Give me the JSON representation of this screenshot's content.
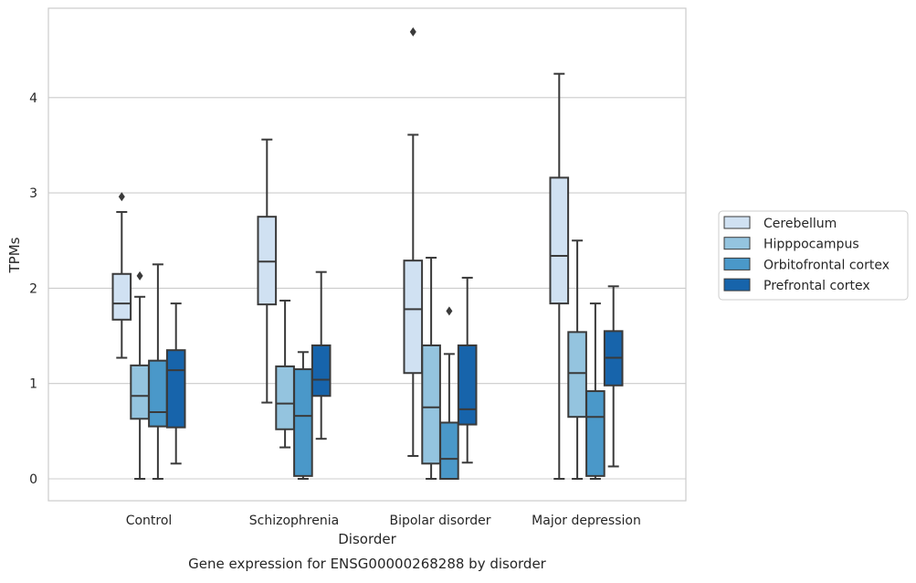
{
  "chart_data": {
    "type": "box",
    "title": "",
    "caption": "Gene expression for ENSG00000268288 by disorder",
    "xlabel": "Disorder",
    "ylabel": "TPMs",
    "ylim": [
      -0.22,
      4.95
    ],
    "yticks": [
      0,
      1,
      2,
      3,
      4
    ],
    "grid": "horizontal",
    "legend_position": "right",
    "categories": [
      "Control",
      "Schizophrenia",
      "Bipolar disorder",
      "Major depression"
    ],
    "series": [
      {
        "name": "Cerebellum",
        "color": "#d0e1f2",
        "boxes": [
          {
            "whisker_low": 1.27,
            "q1": 1.67,
            "median": 1.84,
            "q3": 2.15,
            "whisker_high": 2.8,
            "outliers": [
              2.96
            ]
          },
          {
            "whisker_low": 0.8,
            "q1": 1.83,
            "median": 2.28,
            "q3": 2.75,
            "whisker_high": 3.56,
            "outliers": []
          },
          {
            "whisker_low": 0.24,
            "q1": 1.11,
            "median": 1.78,
            "q3": 2.29,
            "whisker_high": 3.61,
            "outliers": [
              4.69
            ]
          },
          {
            "whisker_low": 0.0,
            "q1": 1.84,
            "median": 2.34,
            "q3": 3.16,
            "whisker_high": 4.25,
            "outliers": []
          }
        ]
      },
      {
        "name": "Hipppocampus",
        "color": "#94c4df",
        "boxes": [
          {
            "whisker_low": 0.0,
            "q1": 0.63,
            "median": 0.87,
            "q3": 1.19,
            "whisker_high": 1.91,
            "outliers": [
              2.13
            ]
          },
          {
            "whisker_low": 0.33,
            "q1": 0.52,
            "median": 0.79,
            "q3": 1.18,
            "whisker_high": 1.87,
            "outliers": []
          },
          {
            "whisker_low": 0.0,
            "q1": 0.16,
            "median": 0.75,
            "q3": 1.4,
            "whisker_high": 2.32,
            "outliers": []
          },
          {
            "whisker_low": 0.0,
            "q1": 0.65,
            "median": 1.11,
            "q3": 1.54,
            "whisker_high": 2.5,
            "outliers": []
          }
        ]
      },
      {
        "name": "Orbitofrontal cortex",
        "color": "#4a98c9",
        "boxes": [
          {
            "whisker_low": 0.0,
            "q1": 0.55,
            "median": 0.7,
            "q3": 1.24,
            "whisker_high": 2.25,
            "outliers": []
          },
          {
            "whisker_low": 0.0,
            "q1": 0.03,
            "median": 0.66,
            "q3": 1.15,
            "whisker_high": 1.33,
            "outliers": []
          },
          {
            "whisker_low": 0.0,
            "q1": 0.0,
            "median": 0.21,
            "q3": 0.59,
            "whisker_high": 1.31,
            "outliers": [
              1.76
            ]
          },
          {
            "whisker_low": 0.0,
            "q1": 0.03,
            "median": 0.65,
            "q3": 0.92,
            "whisker_high": 1.84,
            "outliers": []
          }
        ]
      },
      {
        "name": "Prefrontal cortex",
        "color": "#1764ab",
        "boxes": [
          {
            "whisker_low": 0.16,
            "q1": 0.54,
            "median": 1.14,
            "q3": 1.35,
            "whisker_high": 1.84,
            "outliers": []
          },
          {
            "whisker_low": 0.42,
            "q1": 0.87,
            "median": 1.04,
            "q3": 1.4,
            "whisker_high": 2.17,
            "outliers": []
          },
          {
            "whisker_low": 0.17,
            "q1": 0.57,
            "median": 0.73,
            "q3": 1.4,
            "whisker_high": 2.11,
            "outliers": []
          },
          {
            "whisker_low": 0.13,
            "q1": 0.98,
            "median": 1.27,
            "q3": 1.55,
            "whisker_high": 2.02,
            "outliers": []
          }
        ]
      }
    ]
  }
}
